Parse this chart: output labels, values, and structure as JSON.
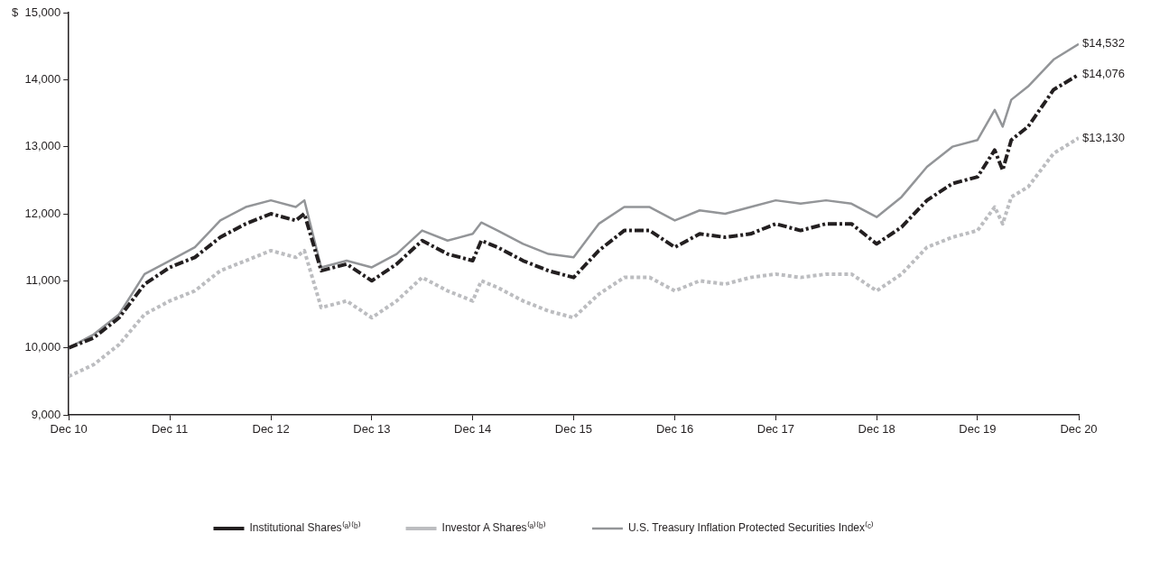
{
  "chart_data": {
    "type": "line",
    "x": [
      "2010-12",
      "2011-03",
      "2011-06",
      "2011-09",
      "2011-12",
      "2012-03",
      "2012-06",
      "2012-09",
      "2012-12",
      "2013-03",
      "2013-04",
      "2013-06",
      "2013-09",
      "2013-12",
      "2014-03",
      "2014-06",
      "2014-09",
      "2014-12",
      "2015-01",
      "2015-03",
      "2015-06",
      "2015-09",
      "2015-12",
      "2016-03",
      "2016-06",
      "2016-09",
      "2016-12",
      "2017-03",
      "2017-06",
      "2017-09",
      "2017-12",
      "2018-03",
      "2018-06",
      "2018-09",
      "2018-12",
      "2019-03",
      "2019-06",
      "2019-09",
      "2019-12",
      "2020-02",
      "2020-03",
      "2020-04",
      "2020-06",
      "2020-09",
      "2020-12"
    ],
    "xlim": [
      "2010-12",
      "2020-12"
    ],
    "xticks": [
      {
        "value": "2010-12",
        "label": "Dec 10"
      },
      {
        "value": "2011-12",
        "label": "Dec 11"
      },
      {
        "value": "2012-12",
        "label": "Dec 12"
      },
      {
        "value": "2013-12",
        "label": "Dec 13"
      },
      {
        "value": "2014-12",
        "label": "Dec 14"
      },
      {
        "value": "2015-12",
        "label": "Dec 15"
      },
      {
        "value": "2016-12",
        "label": "Dec 16"
      },
      {
        "value": "2017-12",
        "label": "Dec 17"
      },
      {
        "value": "2018-12",
        "label": "Dec 18"
      },
      {
        "value": "2019-12",
        "label": "Dec 19"
      },
      {
        "value": "2020-12",
        "label": "Dec 20"
      }
    ],
    "ylim": [
      9000,
      15000
    ],
    "yticks": [
      {
        "value": 9000,
        "label": "9,000"
      },
      {
        "value": 10000,
        "label": "10,000"
      },
      {
        "value": 11000,
        "label": "11,000"
      },
      {
        "value": 12000,
        "label": "12,000"
      },
      {
        "value": 13000,
        "label": "13,000"
      },
      {
        "value": 14000,
        "label": "14,000"
      },
      {
        "value": 15000,
        "label": "$  15,000"
      }
    ],
    "grid": false,
    "legend": "bottom",
    "marker": "none",
    "series": [
      {
        "name": "Institutional Shares⁽ᵃ⁾⁽ᵇ⁾",
        "color": "#231f20",
        "line_style": "dashdot",
        "values": [
          10000,
          10150,
          10450,
          10950,
          11200,
          11350,
          11650,
          11850,
          12000,
          11900,
          12000,
          11150,
          11250,
          11000,
          11250,
          11600,
          11400,
          11300,
          11600,
          11500,
          11300,
          11150,
          11050,
          11450,
          11750,
          11750,
          11500,
          11700,
          11650,
          11700,
          11850,
          11750,
          11850,
          11850,
          11550,
          11800,
          12200,
          12450,
          12550,
          12950,
          12650,
          13100,
          13300,
          13850,
          14076
        ]
      },
      {
        "name": "Investor A Shares⁽ᵃ⁾⁽ᵇ⁾",
        "color": "#bcbdc0",
        "line_style": "dotted",
        "values": [
          9575,
          9750,
          10050,
          10500,
          10700,
          10850,
          11150,
          11300,
          11450,
          11350,
          11450,
          10600,
          10700,
          10450,
          10700,
          11050,
          10850,
          10700,
          11000,
          10900,
          10700,
          10550,
          10450,
          10800,
          11050,
          11050,
          10850,
          11000,
          10950,
          11050,
          11100,
          11050,
          11100,
          11100,
          10850,
          11100,
          11500,
          11650,
          11750,
          12100,
          11850,
          12250,
          12400,
          12900,
          13130
        ]
      },
      {
        "name": "U.S. Treasury Inflation Protected Securities Index⁽ᶜ⁾",
        "color": "#939598",
        "line_style": "solid",
        "values": [
          10000,
          10200,
          10500,
          11100,
          11300,
          11500,
          11900,
          12100,
          12200,
          12100,
          12200,
          11200,
          11300,
          11200,
          11400,
          11750,
          11600,
          11700,
          11870,
          11750,
          11550,
          11400,
          11350,
          11850,
          12100,
          12100,
          11900,
          12050,
          12000,
          12100,
          12200,
          12150,
          12200,
          12150,
          11950,
          12250,
          12700,
          13000,
          13100,
          13550,
          13300,
          13700,
          13900,
          14300,
          14532
        ]
      }
    ],
    "annotations": [
      {
        "text": "$14,532",
        "x": "2020-12",
        "y": 14532
      },
      {
        "text": "$14,076",
        "x": "2020-12",
        "y": 14076
      },
      {
        "text": "$13,130",
        "x": "2020-12",
        "y": 13130
      }
    ]
  }
}
